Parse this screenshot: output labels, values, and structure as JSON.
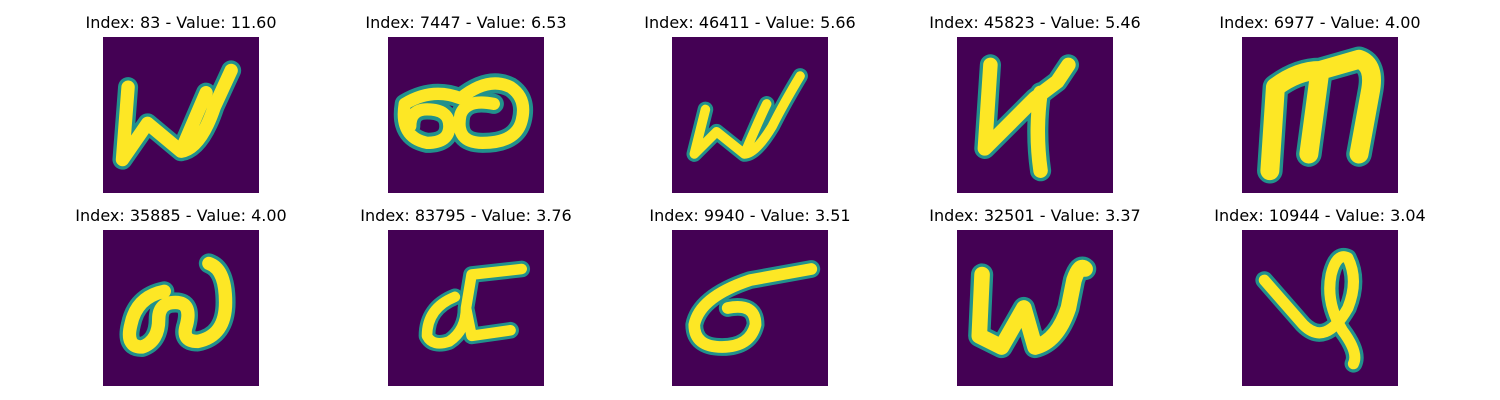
{
  "colors": {
    "background": "#440154",
    "stroke_core": "#fde725",
    "stroke_edge": "#21918c",
    "stroke_mid": "#5ec962"
  },
  "panels": [
    {
      "title": "Index: 83 - Value: 11.60",
      "glyph": "w-shape"
    },
    {
      "title": "Index: 7447 - Value: 6.53",
      "glyph": "double-loop"
    },
    {
      "title": "Index: 46411 - Value: 5.66",
      "glyph": "w-shape-thin"
    },
    {
      "title": "Index: 45823 - Value: 5.46",
      "glyph": "y-like-shape"
    },
    {
      "title": "Index: 6977 - Value: 4.00",
      "glyph": "m-shape"
    },
    {
      "title": "Index: 35885 - Value: 4.00",
      "glyph": "loop-curl"
    },
    {
      "title": "Index: 83795 - Value: 3.76",
      "glyph": "loop-with-bars"
    },
    {
      "title": "Index: 9940 - Value: 3.51",
      "glyph": "loop-with-stroke"
    },
    {
      "title": "Index: 32501 - Value: 3.37",
      "glyph": "w-shape-bold"
    },
    {
      "title": "Index: 10944 - Value: 3.04",
      "glyph": "cross-loop"
    }
  ]
}
